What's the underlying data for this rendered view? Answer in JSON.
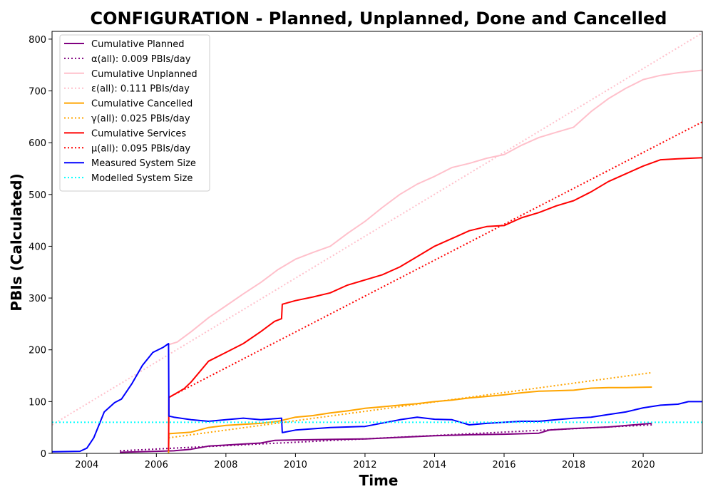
{
  "chart_data": {
    "type": "line",
    "title": "CONFIGURATION - Planned, Unplanned, Done  and Cancelled",
    "xlabel": "Time",
    "ylabel": "PBIs (Calculated)",
    "xlim": [
      2003.0,
      2021.7
    ],
    "ylim": [
      0,
      815
    ],
    "xticks": [
      2004,
      2006,
      2008,
      2010,
      2012,
      2014,
      2016,
      2018,
      2020
    ],
    "yticks": [
      0,
      100,
      200,
      300,
      400,
      500,
      600,
      700,
      800
    ],
    "grid": false,
    "legend_position": "top-left",
    "series": [
      {
        "name": "Cumulative Planned",
        "color": "#800080",
        "style": "solid",
        "x": [
          2004.95,
          2005.5,
          2006.0,
          2006.5,
          2007.0,
          2007.5,
          2008.0,
          2008.5,
          2009.0,
          2009.4,
          2010.0,
          2011.0,
          2012.0,
          2013.0,
          2014.0,
          2015.0,
          2016.0,
          2017.0,
          2017.3,
          2018.0,
          2019.0,
          2020.25
        ],
        "y": [
          2,
          3,
          4,
          5,
          8,
          14,
          16,
          18,
          20,
          25,
          26,
          27,
          28,
          31,
          34,
          36,
          37,
          39,
          45,
          48,
          51,
          58
        ]
      },
      {
        "name": "α(all): 0.009 PBIs/day",
        "color": "#800080",
        "style": "dotted",
        "x": [
          2004.95,
          2020.25
        ],
        "y": [
          5,
          55
        ]
      },
      {
        "name": "Cumulative Unplanned",
        "color": "#ffc0cb",
        "style": "solid",
        "x": [
          2006.35,
          2006.6,
          2007.0,
          2007.5,
          2008.0,
          2008.5,
          2009.0,
          2009.5,
          2010.0,
          2010.5,
          2011.0,
          2011.5,
          2012.0,
          2012.5,
          2013.0,
          2013.5,
          2014.0,
          2014.5,
          2015.0,
          2015.5,
          2016.0,
          2016.5,
          2017.0,
          2017.5,
          2018.0,
          2018.5,
          2019.0,
          2019.5,
          2020.0,
          2020.5,
          2021.0,
          2021.7
        ],
        "y": [
          210,
          215,
          235,
          262,
          285,
          308,
          330,
          355,
          375,
          388,
          400,
          425,
          448,
          475,
          500,
          520,
          535,
          552,
          560,
          570,
          577,
          595,
          610,
          620,
          630,
          660,
          685,
          705,
          722,
          730,
          735,
          740
        ]
      },
      {
        "name": "ε(all): 0.111 PBIs/day",
        "color": "#ffc0cb",
        "style": "dotted",
        "x": [
          2003.0,
          2021.7
        ],
        "y": [
          55,
          812
        ]
      },
      {
        "name": "Cumulative Cancelled",
        "color": "#ffa500",
        "style": "solid",
        "x": [
          2006.35,
          2006.36,
          2007.0,
          2007.5,
          2008.0,
          2008.5,
          2009.0,
          2009.5,
          2010.0,
          2010.5,
          2011.0,
          2011.5,
          2012.0,
          2012.5,
          2013.0,
          2013.5,
          2014.0,
          2014.5,
          2015.0,
          2015.5,
          2016.0,
          2016.5,
          2017.0,
          2017.5,
          2018.0,
          2018.5,
          2019.0,
          2019.5,
          2020.25
        ],
        "y": [
          0,
          38,
          41,
          50,
          54,
          56,
          58,
          62,
          70,
          73,
          78,
          82,
          87,
          90,
          93,
          96,
          100,
          103,
          107,
          110,
          113,
          117,
          120,
          121,
          122,
          126,
          127,
          127,
          128
        ]
      },
      {
        "name": "γ(all): 0.025 PBIs/day",
        "color": "#ffa500",
        "style": "dotted",
        "x": [
          2006.35,
          2020.25
        ],
        "y": [
          30,
          156
        ]
      },
      {
        "name": "Cumulative Services",
        "color": "#ff0000",
        "style": "solid",
        "x": [
          2006.35,
          2006.36,
          2006.8,
          2007.0,
          2007.5,
          2008.0,
          2008.5,
          2009.0,
          2009.4,
          2009.6,
          2009.62,
          2010.0,
          2010.5,
          2011.0,
          2011.5,
          2012.0,
          2012.5,
          2013.0,
          2013.5,
          2014.0,
          2014.5,
          2015.0,
          2015.5,
          2016.0,
          2016.5,
          2017.0,
          2017.5,
          2018.0,
          2018.5,
          2019.0,
          2019.5,
          2020.0,
          2020.5,
          2021.0,
          2021.7
        ],
        "y": [
          5,
          108,
          125,
          138,
          178,
          195,
          212,
          235,
          255,
          260,
          288,
          295,
          302,
          310,
          325,
          335,
          345,
          360,
          380,
          400,
          415,
          430,
          438,
          440,
          455,
          465,
          478,
          488,
          505,
          525,
          540,
          555,
          567,
          569,
          571
        ]
      },
      {
        "name": "μ(all): 0.095 PBIs/day",
        "color": "#ff0000",
        "style": "dotted",
        "x": [
          2006.35,
          2021.7
        ],
        "y": [
          108,
          640
        ]
      },
      {
        "name": "Measured System Size",
        "color": "#0000ff",
        "style": "solid",
        "x": [
          2003.0,
          2003.8,
          2004.0,
          2004.2,
          2004.5,
          2004.8,
          2005.0,
          2005.3,
          2005.6,
          2005.9,
          2006.2,
          2006.35,
          2006.36,
          2006.5,
          2007.0,
          2007.5,
          2008.0,
          2008.5,
          2009.0,
          2009.6,
          2009.62,
          2010.0,
          2011.0,
          2012.0,
          2013.0,
          2013.5,
          2014.0,
          2014.5,
          2015.0,
          2015.5,
          2016.0,
          2016.5,
          2017.0,
          2017.5,
          2018.0,
          2018.5,
          2019.0,
          2019.5,
          2020.0,
          2020.5,
          2021.0,
          2021.3,
          2021.7
        ],
        "y": [
          3,
          4,
          10,
          30,
          80,
          98,
          105,
          135,
          170,
          195,
          205,
          212,
          72,
          70,
          65,
          62,
          65,
          68,
          65,
          68,
          40,
          45,
          50,
          52,
          65,
          70,
          66,
          65,
          55,
          58,
          60,
          62,
          62,
          65,
          68,
          70,
          75,
          80,
          88,
          93,
          95,
          100,
          100
        ]
      },
      {
        "name": "Modelled System Size",
        "color": "#00ffff",
        "style": "dotted",
        "x": [
          2003.0,
          2021.7
        ],
        "y": [
          60,
          60
        ]
      }
    ]
  }
}
